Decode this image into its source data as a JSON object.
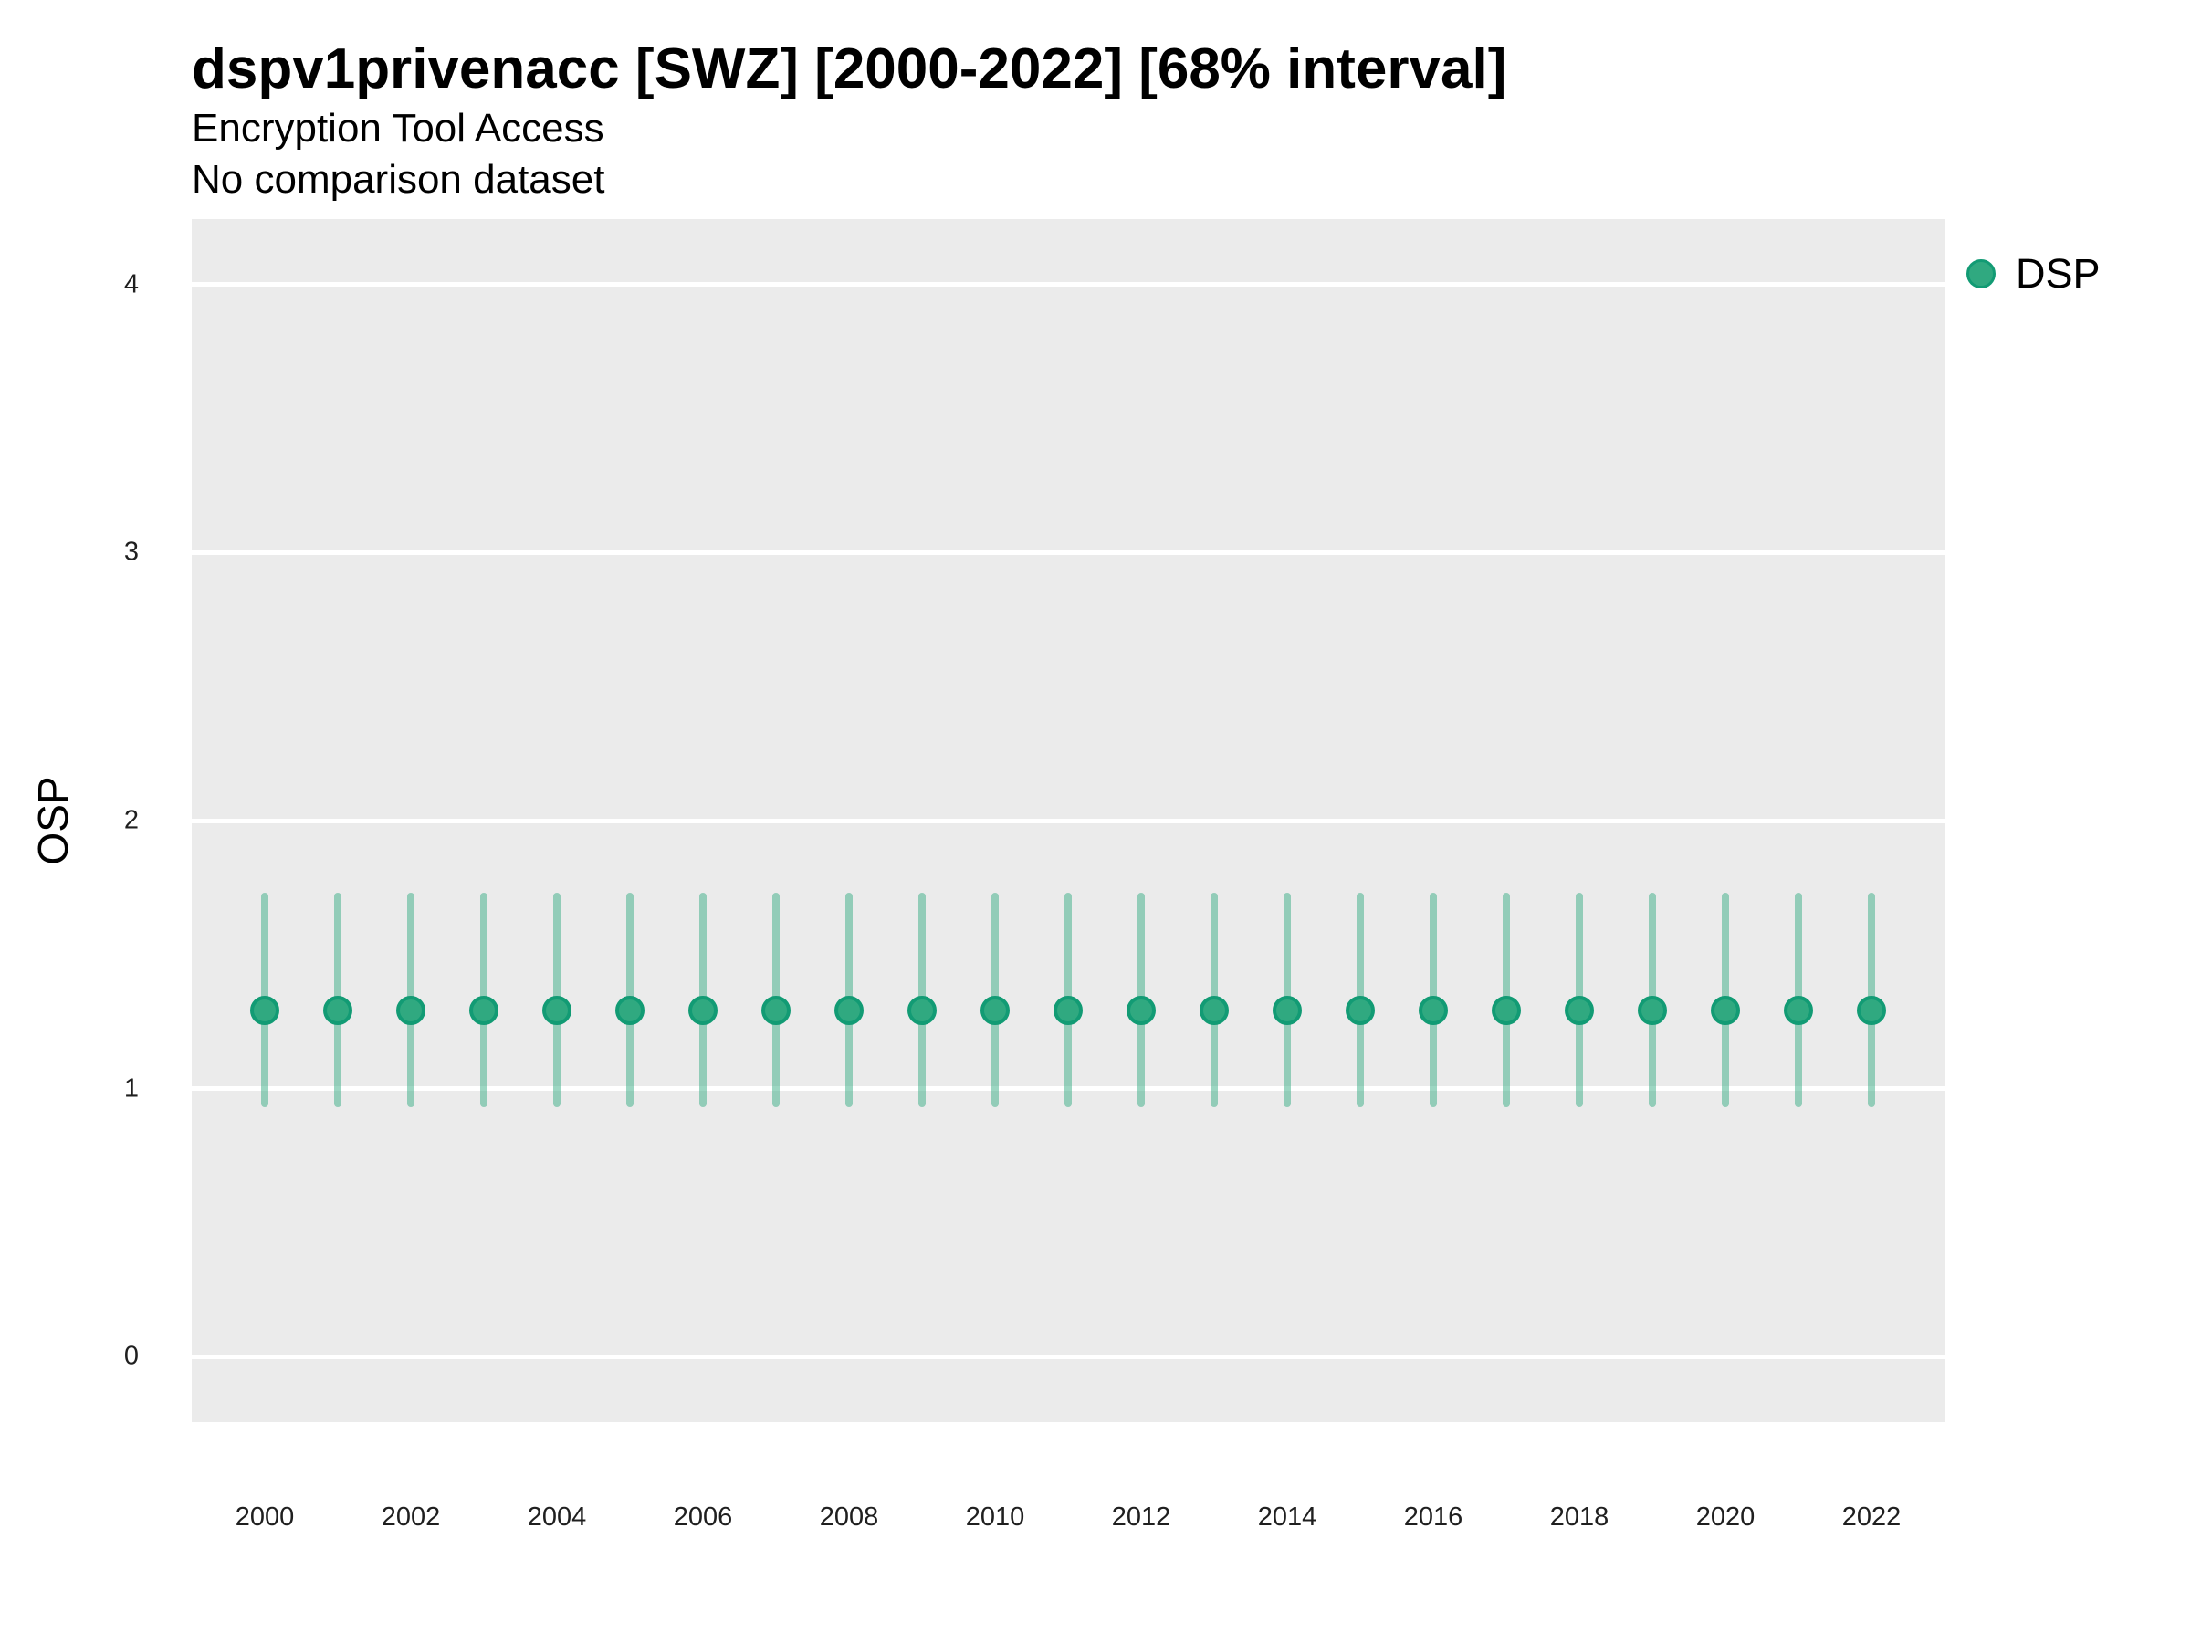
{
  "header": {
    "title": "dspv1privenacc [SWZ] [2000-2022] [68% interval]",
    "subtitle": "Encryption Tool Access",
    "dataset_note": "No comparison dataset"
  },
  "y_axis": {
    "label": "OSP",
    "ticks": [
      "0",
      "1",
      "2",
      "3",
      "4"
    ]
  },
  "x_axis": {
    "ticks": [
      "2000",
      "2002",
      "2004",
      "2006",
      "2008",
      "2010",
      "2012",
      "2014",
      "2016",
      "2018",
      "2020",
      "2022"
    ]
  },
  "legend": {
    "items": [
      {
        "label": "DSP",
        "color": "#30A980",
        "stroke": "#129B74"
      }
    ]
  },
  "colors": {
    "panel_background": "#EBEBEB",
    "gridline": "#FFFFFF",
    "point_fill": "#30A980",
    "point_stroke": "#129B74",
    "interval_bar": "rgba(48,169,128,0.48)",
    "text": "#000000",
    "tick_text": "#1F1F1F"
  },
  "chart_data": {
    "type": "scatter",
    "title": "dspv1privenacc [SWZ] [2000-2022] [68% interval]",
    "subtitle": "Encryption Tool Access",
    "note": "No comparison dataset",
    "xlabel": "",
    "ylabel": "OSP",
    "interval_label": "68% interval",
    "legend_position": "right-top",
    "grid": "horizontal-major-only",
    "xlim": [
      1999,
      2023
    ],
    "ylim": [
      -0.245,
      4.245
    ],
    "x_ticks": [
      2000,
      2002,
      2004,
      2006,
      2008,
      2010,
      2012,
      2014,
      2016,
      2018,
      2020,
      2022
    ],
    "y_ticks": [
      0,
      1,
      2,
      3,
      4
    ],
    "series": [
      {
        "name": "DSP",
        "marker": "circle",
        "color": "#30A980",
        "stroke": "#129B74",
        "interval_color": "rgba(48,169,128,0.48)",
        "x": [
          2000,
          2001,
          2002,
          2003,
          2004,
          2005,
          2006,
          2007,
          2008,
          2009,
          2010,
          2011,
          2012,
          2013,
          2014,
          2015,
          2016,
          2017,
          2018,
          2019,
          2020,
          2021,
          2022
        ],
        "y": [
          1.29,
          1.29,
          1.29,
          1.29,
          1.29,
          1.29,
          1.29,
          1.29,
          1.29,
          1.29,
          1.29,
          1.29,
          1.29,
          1.29,
          1.29,
          1.29,
          1.29,
          1.29,
          1.29,
          1.29,
          1.29,
          1.29,
          1.29
        ],
        "lo": [
          0.93,
          0.93,
          0.93,
          0.93,
          0.93,
          0.93,
          0.93,
          0.93,
          0.93,
          0.93,
          0.93,
          0.93,
          0.93,
          0.93,
          0.93,
          0.93,
          0.93,
          0.93,
          0.93,
          0.93,
          0.93,
          0.93,
          0.93
        ],
        "hi": [
          1.73,
          1.73,
          1.73,
          1.73,
          1.73,
          1.73,
          1.73,
          1.73,
          1.73,
          1.73,
          1.73,
          1.73,
          1.73,
          1.73,
          1.73,
          1.73,
          1.73,
          1.73,
          1.73,
          1.73,
          1.73,
          1.73,
          1.73
        ]
      }
    ]
  }
}
